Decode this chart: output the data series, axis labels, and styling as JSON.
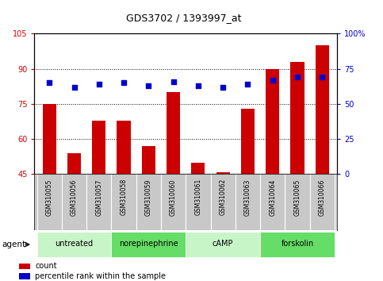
{
  "title": "GDS3702 / 1393997_at",
  "samples": [
    "GSM310055",
    "GSM310056",
    "GSM310057",
    "GSM310058",
    "GSM310059",
    "GSM310060",
    "GSM310061",
    "GSM310062",
    "GSM310063",
    "GSM310064",
    "GSM310065",
    "GSM310066"
  ],
  "counts": [
    75,
    54,
    68,
    68,
    57,
    80,
    50,
    46,
    73,
    90,
    93,
    100
  ],
  "percentiles": [
    65,
    62,
    64,
    65,
    63,
    66,
    63,
    62,
    64,
    67,
    69,
    69
  ],
  "agents": [
    {
      "label": "untreated",
      "start": 0,
      "end": 3
    },
    {
      "label": "norepinephrine",
      "start": 3,
      "end": 6
    },
    {
      "label": "cAMP",
      "start": 6,
      "end": 9
    },
    {
      "label": "forskolin",
      "start": 9,
      "end": 12
    }
  ],
  "ylim_left": [
    45,
    105
  ],
  "ylim_right": [
    0,
    100
  ],
  "yticks_left": [
    45,
    60,
    75,
    90,
    105
  ],
  "yticks_right": [
    0,
    25,
    50,
    75,
    100
  ],
  "ytick_labels_right": [
    "0",
    "25",
    "50",
    "75",
    "100%"
  ],
  "bar_color": "#cc0000",
  "scatter_color": "#0000cc",
  "agent_bg_color_light": "#c8f5c8",
  "agent_bg_color_dark": "#66dd66",
  "sample_bg_color": "#c8c8c8",
  "plot_bg_color": "#ffffff",
  "legend_count_label": "count",
  "legend_pct_label": "percentile rank within the sample",
  "agent_label": "agent"
}
